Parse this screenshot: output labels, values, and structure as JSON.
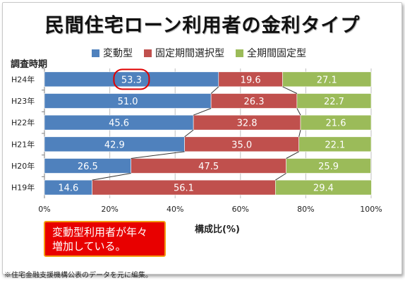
{
  "title": "民間住宅ローン利用者の金利タイプ",
  "chart_data": {
    "type": "bar",
    "orientation": "horizontal-stacked-100",
    "ylabel": "調査時期",
    "xlabel": "構成比(%)",
    "categories": [
      "H24年",
      "H23年",
      "H22年",
      "H21年",
      "H20年",
      "H19年"
    ],
    "series": [
      {
        "name": "変動型",
        "color": "#4f81bd",
        "values": [
          53.3,
          51.0,
          45.6,
          42.9,
          26.5,
          14.6
        ]
      },
      {
        "name": "固定期間選択型",
        "color": "#c0504d",
        "values": [
          19.6,
          26.3,
          32.8,
          35.0,
          47.5,
          56.1
        ]
      },
      {
        "name": "全期間固定型",
        "color": "#9bbb59",
        "values": [
          27.1,
          22.7,
          21.6,
          22.1,
          25.9,
          29.4
        ]
      }
    ],
    "value_labels": [
      [
        "53.3",
        "19.6",
        "27.1"
      ],
      [
        "51.0",
        "26.3",
        "22.7"
      ],
      [
        "45.6",
        "32.8",
        "21.6"
      ],
      [
        "42.9",
        "35.0",
        "22.1"
      ],
      [
        "26.5",
        "47.5",
        "25.9"
      ],
      [
        "14.6",
        "56.1",
        "29.4"
      ]
    ],
    "xlim": [
      0,
      100
    ],
    "x_ticks": [
      "0%",
      "20%",
      "40%",
      "60%",
      "80%",
      "100%"
    ],
    "legend_position": "top",
    "series_lines": true,
    "highlighted_value": "53.3"
  },
  "callout": {
    "line1": "変動型利用者が年々",
    "line2": "増加している。"
  },
  "footnote": "※住宅金融支援機構公表のデータを元に編集。"
}
